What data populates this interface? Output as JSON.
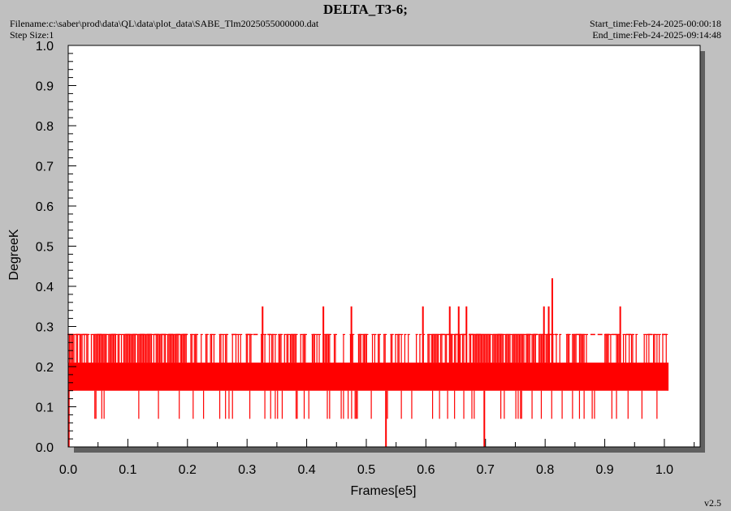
{
  "header": {
    "title": "DELTA_T3-6;",
    "filename": "Filename:c:\\saber\\prod\\data\\QL\\data\\plot_data\\SABE_Tlm2025055000000.dat",
    "step_size": "Step Size:1",
    "start_time": "Start_time:Feb-24-2025-00:00:18",
    "end_time": "End_time:Feb-24-2025-09:14:48",
    "version": "v2.5"
  },
  "colors": {
    "series": "#ff0000",
    "plot_bg": "#ffffff",
    "frame_bg": "#c0c0c0",
    "shadow": "#606060"
  },
  "chart_data": {
    "type": "line",
    "xlabel": "Frames[e5]",
    "ylabel": "DegreeK",
    "xlim": [
      0,
      1.06
    ],
    "ylim": [
      0,
      1.0
    ],
    "xticks": [
      "0.0",
      "0.1",
      "0.2",
      "0.3",
      "0.4",
      "0.5",
      "0.6",
      "0.7",
      "0.8",
      "0.9",
      "1.0"
    ],
    "yticks": [
      "0.0",
      "0.1",
      "0.2",
      "0.3",
      "0.4",
      "0.5",
      "0.6",
      "0.7",
      "0.8",
      "0.9",
      "1.0"
    ],
    "x_range": [
      0.0,
      1.007
    ],
    "levels": [
      0.07,
      0.14,
      0.21,
      0.28
    ],
    "dense_band": [
      0.14,
      0.21
    ],
    "spikes": [
      {
        "x": 0.326,
        "y": 0.35
      },
      {
        "x": 0.428,
        "y": 0.35
      },
      {
        "x": 0.475,
        "y": 0.35
      },
      {
        "x": 0.595,
        "y": 0.35
      },
      {
        "x": 0.64,
        "y": 0.35
      },
      {
        "x": 0.655,
        "y": 0.35
      },
      {
        "x": 0.668,
        "y": 0.35
      },
      {
        "x": 0.798,
        "y": 0.35
      },
      {
        "x": 0.806,
        "y": 0.35
      },
      {
        "x": 0.812,
        "y": 0.42
      },
      {
        "x": 0.926,
        "y": 0.35
      }
    ],
    "dips": [
      {
        "x": 0.001,
        "y": 0.0
      },
      {
        "x": 0.533,
        "y": 0.0
      },
      {
        "x": 0.698,
        "y": 0.0
      }
    ],
    "grid": false
  }
}
